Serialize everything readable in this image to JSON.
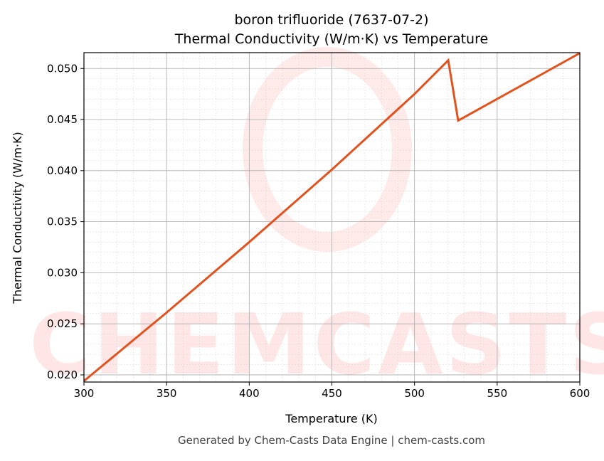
{
  "chart_data": {
    "type": "line",
    "title": "boron trifluoride (7637-07-2)",
    "subtitle": "Thermal Conductivity (W/m·K) vs Temperature",
    "xlabel": "Temperature (K)",
    "ylabel": "Thermal Conductivity (W/m·K)",
    "xlim": [
      300,
      600
    ],
    "ylim": [
      0.0193,
      0.05155
    ],
    "xticks": [
      "300",
      "350",
      "400",
      "450",
      "500",
      "550",
      "600"
    ],
    "yticks": [
      "0.020",
      "0.025",
      "0.030",
      "0.035",
      "0.040",
      "0.045",
      "0.050"
    ],
    "grid": true,
    "series": [
      {
        "name": "Thermal Conductivity",
        "color": "#e0531f",
        "x": [
          300,
          350,
          400,
          450,
          500,
          520.4,
          526.4,
          600
        ],
        "y": [
          0.0194,
          0.0261,
          0.033,
          0.0401,
          0.0475,
          0.0508,
          0.0449,
          0.0515
        ]
      }
    ]
  },
  "watermark": "CHEMCASTS",
  "footer": "Generated by Chem-Casts Data Engine | chem-casts.com"
}
